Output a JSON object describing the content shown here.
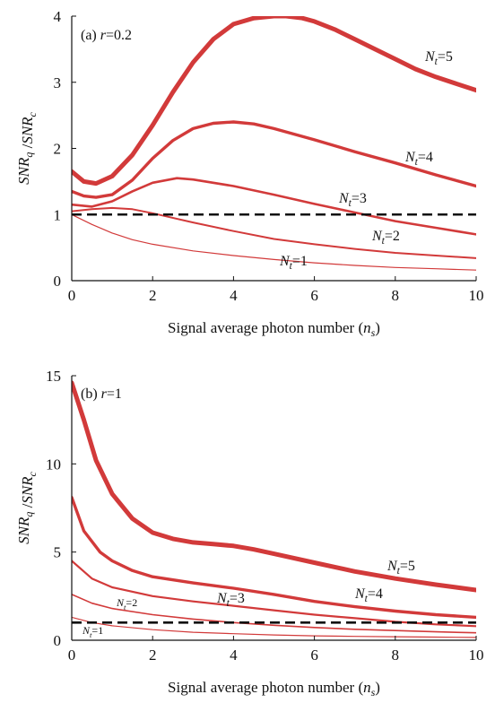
{
  "chart_data": [
    {
      "type": "line",
      "panel_label": "(a) r=0.2",
      "panel_prefix": "(a) ",
      "panel_var": "r",
      "panel_val": "=0.2",
      "xlabel": "Signal average photon number (n_s)",
      "ylabel": "SNR_q / SNR_c",
      "xlim": [
        0,
        10
      ],
      "ylim": [
        0,
        4
      ],
      "xticks": [
        0,
        2,
        4,
        6,
        8,
        10
      ],
      "yticks": [
        0,
        1,
        2,
        3,
        4
      ],
      "reference_line": {
        "y": 1,
        "style": "dashed",
        "color": "#111111"
      },
      "series": [
        {
          "name": "N_t=1",
          "label_sub": "t",
          "label_val": "=1",
          "color": "#d23a3a",
          "width": 1.2,
          "x": [
            0,
            0.5,
            1,
            1.5,
            2,
            3,
            4,
            5,
            6,
            7,
            8,
            9,
            10
          ],
          "y": [
            1.0,
            0.85,
            0.72,
            0.62,
            0.55,
            0.45,
            0.38,
            0.32,
            0.27,
            0.23,
            0.2,
            0.18,
            0.16
          ]
        },
        {
          "name": "N_t=2",
          "label_sub": "t",
          "label_val": "=2",
          "color": "#d23a3a",
          "width": 2,
          "x": [
            0,
            0.5,
            1,
            1.5,
            2,
            3,
            4,
            5,
            6,
            7,
            8,
            9,
            10
          ],
          "y": [
            1.05,
            1.08,
            1.1,
            1.08,
            1.02,
            0.88,
            0.75,
            0.63,
            0.55,
            0.48,
            0.42,
            0.38,
            0.34
          ]
        },
        {
          "name": "N_t=3",
          "label_sub": "t",
          "label_val": "=3",
          "color": "#d23a3a",
          "width": 2.6,
          "x": [
            0,
            0.5,
            1,
            1.5,
            2,
            2.6,
            3,
            4,
            5,
            6,
            7,
            8,
            9,
            10
          ],
          "y": [
            1.15,
            1.12,
            1.2,
            1.35,
            1.48,
            1.55,
            1.53,
            1.43,
            1.3,
            1.16,
            1.03,
            0.9,
            0.8,
            0.7
          ]
        },
        {
          "name": "N_t=4",
          "label_sub": "t",
          "label_val": "=4",
          "color": "#d23a3a",
          "width": 3.4,
          "x": [
            0,
            0.3,
            0.6,
            1,
            1.5,
            2,
            2.5,
            3,
            3.5,
            4,
            4.5,
            5,
            6,
            7,
            8,
            9,
            10
          ],
          "y": [
            1.35,
            1.28,
            1.26,
            1.3,
            1.52,
            1.85,
            2.12,
            2.3,
            2.38,
            2.4,
            2.37,
            2.3,
            2.13,
            1.95,
            1.78,
            1.6,
            1.43
          ]
        },
        {
          "name": "N_t=5",
          "label_sub": "t",
          "label_val": "=5",
          "color": "#d23a3a",
          "width": 5,
          "x": [
            0,
            0.3,
            0.6,
            1,
            1.5,
            2,
            2.5,
            3,
            3.5,
            4,
            4.5,
            5,
            5.3,
            5.7,
            6,
            6.5,
            7,
            7.5,
            8,
            8.5,
            9,
            9.5,
            10
          ],
          "y": [
            1.65,
            1.5,
            1.47,
            1.58,
            1.9,
            2.35,
            2.85,
            3.3,
            3.65,
            3.88,
            3.97,
            4.0,
            4.0,
            3.97,
            3.92,
            3.8,
            3.65,
            3.5,
            3.35,
            3.2,
            3.08,
            2.98,
            2.88
          ]
        }
      ]
    },
    {
      "type": "line",
      "panel_label": "(b) r=1",
      "panel_prefix": "(b) ",
      "panel_var": "r",
      "panel_val": "=1",
      "xlabel": "Signal average photon number (n_s)",
      "ylabel": "SNR_q / SNR_c",
      "xlim": [
        0,
        10
      ],
      "ylim": [
        0,
        15
      ],
      "xticks": [
        0,
        2,
        4,
        6,
        8,
        10
      ],
      "yticks": [
        0,
        5,
        10,
        15
      ],
      "reference_line": {
        "y": 1,
        "style": "dashed",
        "color": "#111111"
      },
      "series": [
        {
          "name": "N_t=1",
          "label_sub": "t",
          "label_val": "=1",
          "color": "#d23a3a",
          "width": 1.2,
          "x": [
            0,
            0.5,
            1,
            2,
            3,
            4,
            5,
            6,
            7,
            8,
            9,
            10
          ],
          "y": [
            1.3,
            1.0,
            0.82,
            0.6,
            0.45,
            0.37,
            0.3,
            0.25,
            0.22,
            0.2,
            0.18,
            0.16
          ]
        },
        {
          "name": "N_t=2",
          "label_sub": "t",
          "label_val": "=2",
          "color": "#d23a3a",
          "width": 1.6,
          "x": [
            0,
            0.5,
            1,
            2,
            3,
            4,
            5,
            6,
            7,
            8,
            9,
            10
          ],
          "y": [
            2.6,
            2.1,
            1.8,
            1.45,
            1.2,
            1.0,
            0.85,
            0.72,
            0.62,
            0.55,
            0.48,
            0.42
          ]
        },
        {
          "name": "N_t=3",
          "label_sub": "t",
          "label_val": "=3",
          "color": "#d23a3a",
          "width": 2.2,
          "x": [
            0,
            0.5,
            1,
            2,
            3,
            4,
            5,
            6,
            7,
            8,
            9,
            10
          ],
          "y": [
            4.5,
            3.5,
            3.0,
            2.5,
            2.2,
            1.95,
            1.7,
            1.45,
            1.25,
            1.05,
            0.9,
            0.8
          ]
        },
        {
          "name": "N_t=4",
          "label_sub": "t",
          "label_val": "=4",
          "color": "#d23a3a",
          "width": 3.4,
          "x": [
            0,
            0.3,
            0.7,
            1,
            1.5,
            2,
            3,
            4,
            5,
            6,
            7,
            8,
            9,
            10
          ],
          "y": [
            8.1,
            6.2,
            5.0,
            4.5,
            3.95,
            3.6,
            3.25,
            2.95,
            2.6,
            2.2,
            1.9,
            1.65,
            1.45,
            1.3
          ]
        },
        {
          "name": "N_t=5",
          "label_sub": "t",
          "label_val": "=5",
          "color": "#d23a3a",
          "width": 5,
          "x": [
            0,
            0.3,
            0.6,
            1,
            1.5,
            2,
            2.5,
            3,
            3.5,
            4,
            4.5,
            5,
            6,
            7,
            8,
            9,
            10
          ],
          "y": [
            14.6,
            12.5,
            10.2,
            8.3,
            6.9,
            6.1,
            5.75,
            5.55,
            5.45,
            5.35,
            5.15,
            4.9,
            4.4,
            3.9,
            3.5,
            3.15,
            2.85
          ]
        }
      ]
    }
  ]
}
